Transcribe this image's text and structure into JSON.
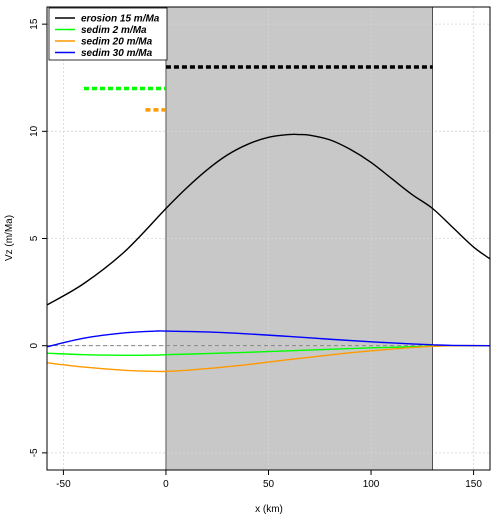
{
  "chart_data": {
    "type": "line",
    "xlabel": "x (km)",
    "ylabel": "Vz (m/Ma)",
    "xlim": [
      -58,
      158
    ],
    "ylim": [
      -5.8,
      15.8
    ],
    "x_ticks": [
      -50,
      0,
      50,
      100,
      150
    ],
    "y_ticks": [
      -5,
      0,
      5,
      10,
      15
    ],
    "grid": true,
    "legend_position": "top-left",
    "shaded_region": {
      "x": [
        0,
        130
      ],
      "color": "#c8c8c8"
    },
    "zero_line": {
      "y": 0,
      "style": "dashed",
      "color": "#888888"
    },
    "series": [
      {
        "name": "erosion 15 m/Ma",
        "color": "#000000",
        "x": [
          -58,
          -40,
          -20,
          0,
          10,
          20,
          30,
          40,
          50,
          60,
          65,
          70,
          80,
          90,
          100,
          110,
          120,
          130,
          140,
          150,
          158
        ],
        "y": [
          1.9,
          2.9,
          4.4,
          6.4,
          7.35,
          8.2,
          8.9,
          9.4,
          9.72,
          9.85,
          9.85,
          9.82,
          9.6,
          9.15,
          8.55,
          7.8,
          7.05,
          6.4,
          5.5,
          4.6,
          4.05
        ]
      },
      {
        "name": "sedim 2 m/Ma",
        "color": "#00ff00",
        "x": [
          -58,
          -40,
          -20,
          -5,
          0,
          20,
          40,
          60,
          80,
          100,
          120,
          130,
          140,
          158
        ],
        "y": [
          -0.35,
          -0.42,
          -0.45,
          -0.44,
          -0.42,
          -0.37,
          -0.31,
          -0.24,
          -0.17,
          -0.1,
          -0.05,
          -0.02,
          0,
          0
        ]
      },
      {
        "name": "sedim 20 m/Ma",
        "color": "#ff9900",
        "x": [
          -58,
          -40,
          -20,
          -5,
          0,
          10,
          20,
          40,
          60,
          80,
          100,
          120,
          130,
          140,
          158
        ],
        "y": [
          -0.8,
          -1.0,
          -1.15,
          -1.2,
          -1.2,
          -1.15,
          -1.07,
          -0.88,
          -0.65,
          -0.43,
          -0.24,
          -0.09,
          -0.03,
          0,
          0
        ]
      },
      {
        "name": "sedim 30 m/Ma",
        "color": "#0000ff",
        "x": [
          -58,
          -40,
          -20,
          -5,
          0,
          20,
          40,
          60,
          80,
          100,
          120,
          130,
          140,
          158
        ],
        "y": [
          -0.05,
          0.35,
          0.6,
          0.68,
          0.68,
          0.64,
          0.55,
          0.43,
          0.3,
          0.18,
          0.08,
          0.04,
          0.01,
          0
        ]
      }
    ],
    "dashed_segments": [
      {
        "color": "#000000",
        "x": [
          0,
          130
        ],
        "y": 13.0
      },
      {
        "color": "#00ff00",
        "x": [
          -40,
          0
        ],
        "y": 12.0
      },
      {
        "color": "#ff9900",
        "x": [
          -10,
          0
        ],
        "y": 11.0
      }
    ]
  }
}
